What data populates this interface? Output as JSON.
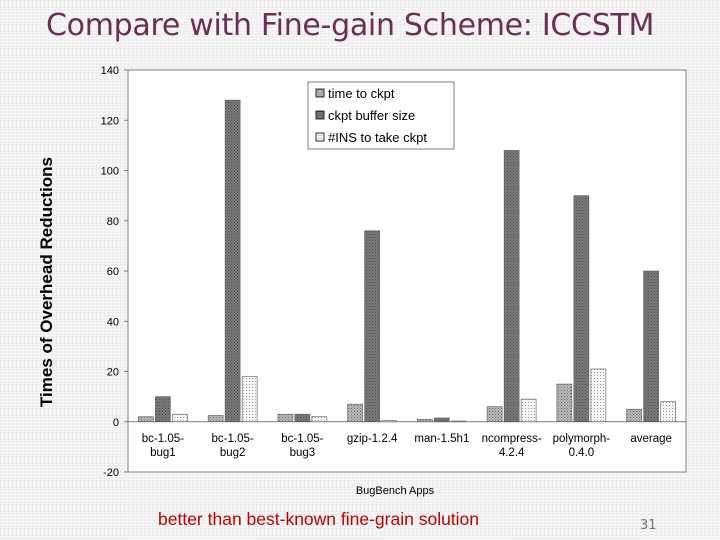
{
  "slide": {
    "title": "Compare with Fine-gain Scheme: ICCSTM",
    "caption": "better than best-known fine-grain solution",
    "page_number": "31"
  },
  "colors": {
    "title": "#6b2e55",
    "caption": "#c00000",
    "series_time": "#a8a8a8",
    "series_buffer": "#6f6f6f",
    "series_ins": "#f2f2f2"
  },
  "chart_data": {
    "type": "bar",
    "ylabel": "Times of Overhead Reductions",
    "xlabel": "BugBench Apps",
    "ylim": [
      -20,
      140
    ],
    "yticks": [
      -20,
      0,
      20,
      40,
      60,
      80,
      100,
      120,
      140
    ],
    "categories": [
      [
        "bc-1.05-",
        "bug1"
      ],
      [
        "bc-1.05-",
        "bug2"
      ],
      [
        "bc-1.05-",
        "bug3"
      ],
      [
        "gzip-1.2.4",
        ""
      ],
      [
        "man-1.5h1",
        ""
      ],
      [
        "ncompress-",
        "4.2.4"
      ],
      [
        "polymorph-",
        "0.4.0"
      ],
      [
        "average",
        ""
      ]
    ],
    "series": [
      {
        "name": "time to ckpt",
        "pattern": "dots-dark",
        "values": [
          2,
          2.5,
          3,
          7,
          1,
          6,
          15,
          5
        ]
      },
      {
        "name": "ckpt buffer size",
        "pattern": "dark",
        "values": [
          10,
          128,
          3,
          76,
          1.5,
          108,
          90,
          60
        ]
      },
      {
        "name": "#INS to take ckpt",
        "pattern": "dots-light",
        "values": [
          3,
          18,
          2,
          0.5,
          0.3,
          9,
          21,
          8
        ]
      }
    ],
    "legend": "top-center",
    "grid": false
  }
}
